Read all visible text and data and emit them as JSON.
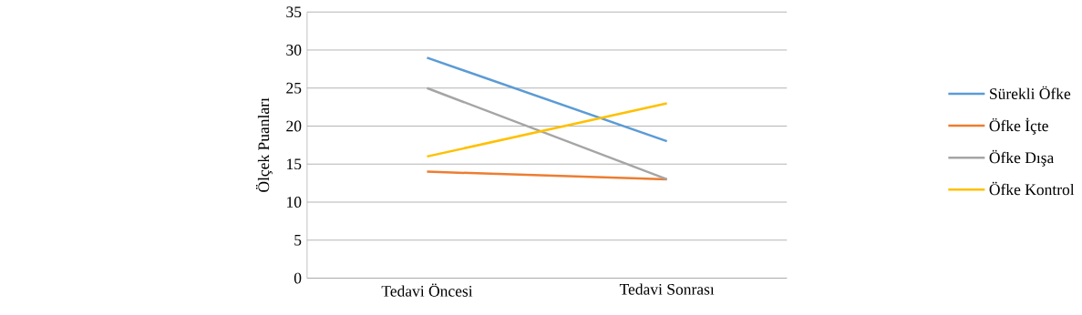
{
  "chart_data": {
    "type": "line",
    "ylabel": "Ölçek Puanları",
    "categories": [
      "Tedavi Öncesi",
      "Tedavi Sonrası"
    ],
    "series": [
      {
        "name": "Sürekli Öfke",
        "color": "#5b9bd5",
        "values": [
          29,
          18
        ]
      },
      {
        "name": "Öfke İçte",
        "color": "#ed7d31",
        "values": [
          14,
          13
        ]
      },
      {
        "name": "Öfke Dışa",
        "color": "#a5a5a5",
        "values": [
          25,
          13
        ]
      },
      {
        "name": "Öfke Kontrol",
        "color": "#ffc000",
        "values": [
          16,
          23
        ]
      }
    ],
    "ylim": [
      0,
      35
    ],
    "yticks": [
      0,
      5,
      10,
      15,
      20,
      25,
      30,
      35
    ],
    "grid": "y",
    "legend": "right",
    "marker": "none",
    "line_style": "solid"
  }
}
